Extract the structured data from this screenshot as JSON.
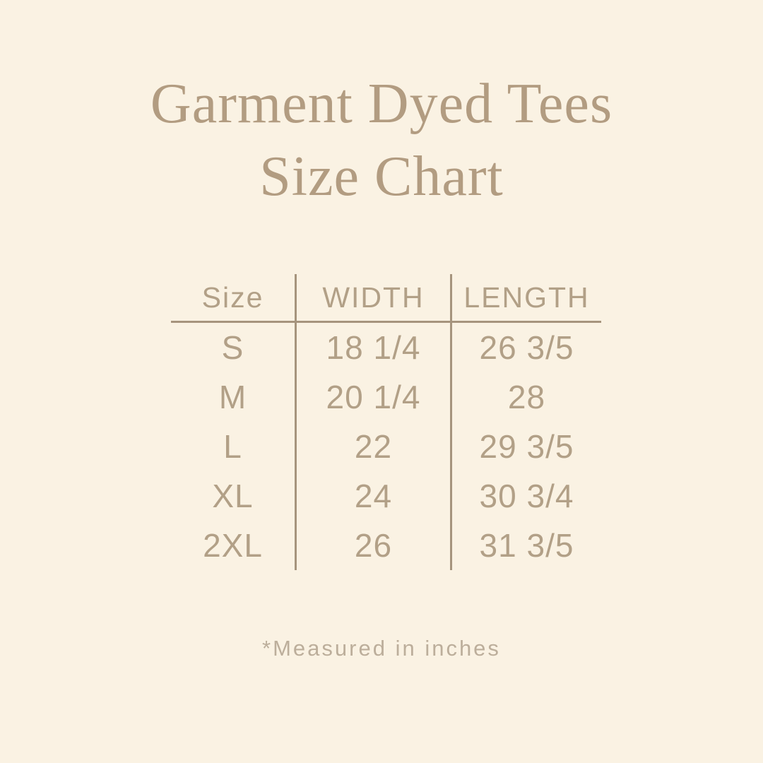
{
  "title": {
    "line1": "Garment Dyed Tees",
    "line2": "Size Chart"
  },
  "table": {
    "headers": [
      "Size",
      "WIDTH",
      "LENGTH"
    ],
    "rows": [
      {
        "size": "S",
        "width": "18 1/4",
        "length": "26 3/5"
      },
      {
        "size": "M",
        "width": "20 1/4",
        "length": "28"
      },
      {
        "size": "L",
        "width": "22",
        "length": "29 3/5"
      },
      {
        "size": "XL",
        "width": "24",
        "length": "30 3/4"
      },
      {
        "size": "2XL",
        "width": "26",
        "length": "31 3/5"
      }
    ]
  },
  "footnote": "*Measured in inches",
  "colors": {
    "background": "#faf2e3",
    "title_text": "#b29c81",
    "table_text": "#b2a087",
    "rule_lines": "#a6947d",
    "footnote_text": "#bcae9b"
  }
}
